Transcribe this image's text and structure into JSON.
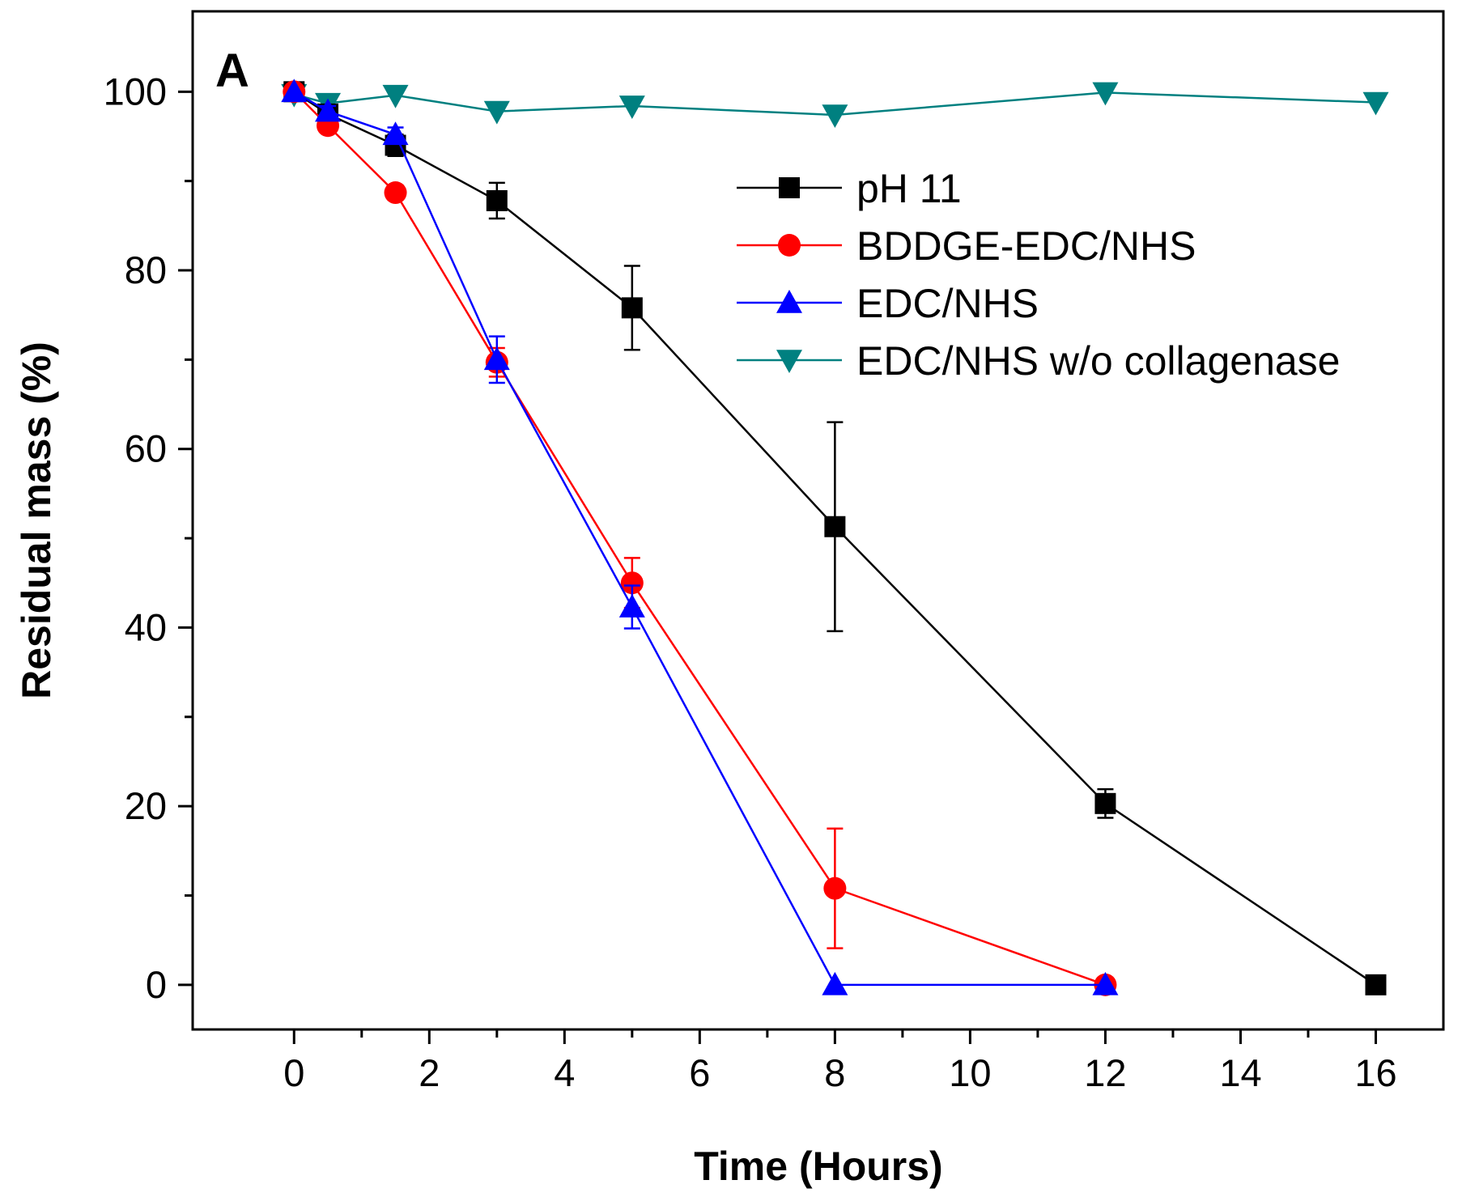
{
  "chart_data": {
    "type": "line",
    "panel_label": "A",
    "title": "",
    "xlabel": "Time (Hours)",
    "ylabel": "Residual mass (%)",
    "xlim": [
      -1.5,
      17
    ],
    "ylim": [
      -5,
      109
    ],
    "xticks": [
      0,
      2,
      4,
      6,
      8,
      10,
      12,
      14,
      16
    ],
    "yticks": [
      0,
      20,
      40,
      60,
      80,
      100
    ],
    "grid": false,
    "legend_position": "upper-right",
    "series": [
      {
        "name": "pH 11",
        "color": "#000000",
        "marker": "square",
        "x": [
          0,
          0.5,
          1.5,
          3,
          5,
          8,
          12,
          16
        ],
        "y": [
          100,
          97.5,
          94,
          87.8,
          75.8,
          51.3,
          20.3,
          0
        ],
        "err": [
          0,
          0.8,
          1.2,
          2.0,
          4.7,
          11.7,
          1.6,
          0
        ]
      },
      {
        "name": "BDDGE-EDC/NHS",
        "color": "#ff0000",
        "marker": "circle",
        "x": [
          0,
          0.5,
          1.5,
          3,
          5,
          8,
          12
        ],
        "y": [
          100,
          96.2,
          88.7,
          69.7,
          45.0,
          10.8,
          0
        ],
        "err": [
          0,
          0.6,
          0.8,
          1.6,
          2.8,
          6.7,
          0
        ]
      },
      {
        "name": "EDC/NHS",
        "color": "#0000ff",
        "marker": "triangle-up",
        "x": [
          0,
          0.5,
          1.5,
          3,
          5,
          8,
          12
        ],
        "y": [
          100,
          97.8,
          95.2,
          70.0,
          42.3,
          0,
          0
        ],
        "err": [
          0,
          0.6,
          0.8,
          2.6,
          2.4,
          0,
          0
        ]
      },
      {
        "name": "EDC/NHS w/o collagenase",
        "color": "#008080",
        "marker": "triangle-down",
        "x": [
          0,
          0.5,
          1.5,
          3,
          5,
          8,
          12,
          16
        ],
        "y": [
          99.7,
          98.7,
          99.6,
          97.8,
          98.4,
          97.4,
          99.9,
          98.8
        ],
        "err": [
          0,
          0,
          0,
          0,
          0,
          0,
          0,
          0
        ]
      }
    ]
  }
}
